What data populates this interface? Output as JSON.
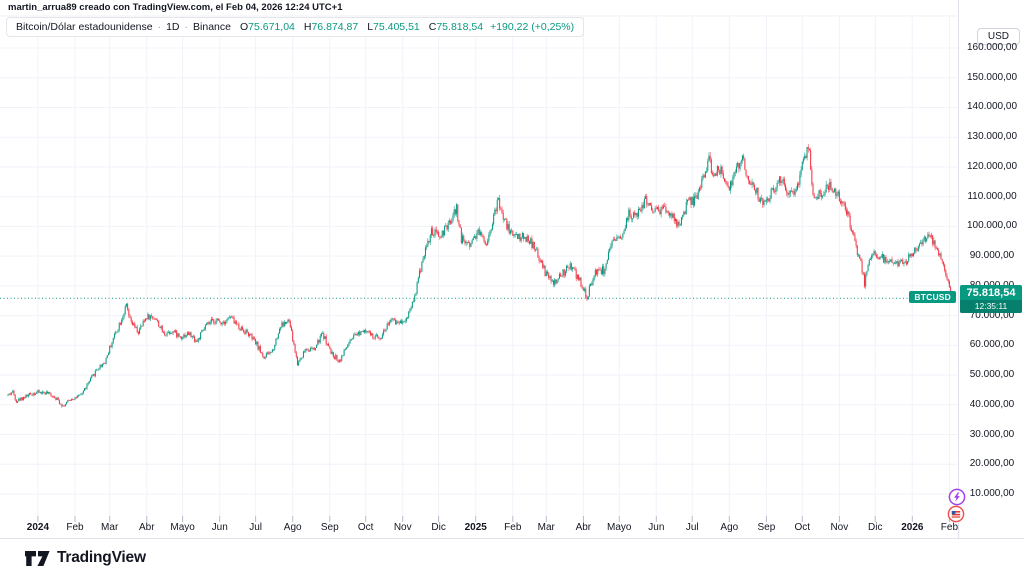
{
  "header": {
    "attribution": "martin_arrua89 creado con TradingView.com, el Feb 04, 2026 12:24 UTC+1"
  },
  "legend": {
    "symbol_title": "Bitcoin/Dólar estadounidense",
    "sep": "·",
    "interval": "1D",
    "exchange": "Binance",
    "o_label": "O",
    "o": "75.671,04",
    "h_label": "H",
    "h": "76.874,87",
    "l_label": "L",
    "l": "75.405,51",
    "c_label": "C",
    "c": "75.818,54",
    "change": "+190,22 (+0,25%)"
  },
  "price_axis": {
    "currency_button": "USD",
    "levels": [
      {
        "text": "160.000,00",
        "value": 160000
      },
      {
        "text": "150.000,00",
        "value": 150000
      },
      {
        "text": "140.000,00",
        "value": 140000
      },
      {
        "text": "130.000,00",
        "value": 130000
      },
      {
        "text": "120.000,00",
        "value": 120000
      },
      {
        "text": "110.000,00",
        "value": 110000
      },
      {
        "text": "100.000,00",
        "value": 100000
      },
      {
        "text": "90.000,00",
        "value": 90000
      },
      {
        "text": "80.000,00",
        "value": 80000
      },
      {
        "text": "70.000,00",
        "value": 70000
      },
      {
        "text": "60.000,00",
        "value": 60000
      },
      {
        "text": "50.000,00",
        "value": 50000
      },
      {
        "text": "40.000,00",
        "value": 40000
      },
      {
        "text": "30.000,00",
        "value": 30000
      },
      {
        "text": "20.000,00",
        "value": 20000
      },
      {
        "text": "10.000,00",
        "value": 10000
      }
    ],
    "price_label": {
      "symbol": "BTCUSD",
      "price": "75.818,54",
      "countdown": "12:35:11"
    }
  },
  "time_axis": {
    "labels": [
      {
        "text": "2024",
        "day": 25,
        "bold": true
      },
      {
        "text": "Feb",
        "day": 56,
        "bold": false
      },
      {
        "text": "Mar",
        "day": 85,
        "bold": false
      },
      {
        "text": "Abr",
        "day": 116,
        "bold": false
      },
      {
        "text": "Mayo",
        "day": 146,
        "bold": false
      },
      {
        "text": "Jun",
        "day": 177,
        "bold": false
      },
      {
        "text": "Jul",
        "day": 207,
        "bold": false
      },
      {
        "text": "Ago",
        "day": 238,
        "bold": false
      },
      {
        "text": "Sep",
        "day": 269,
        "bold": false
      },
      {
        "text": "Oct",
        "day": 299,
        "bold": false
      },
      {
        "text": "Nov",
        "day": 330,
        "bold": false
      },
      {
        "text": "Dic",
        "day": 360,
        "bold": false
      },
      {
        "text": "2025",
        "day": 391,
        "bold": true
      },
      {
        "text": "Feb",
        "day": 422,
        "bold": false
      },
      {
        "text": "Mar",
        "day": 450,
        "bold": false
      },
      {
        "text": "Abr",
        "day": 481,
        "bold": false
      },
      {
        "text": "Mayo",
        "day": 511,
        "bold": false
      },
      {
        "text": "Jun",
        "day": 542,
        "bold": false
      },
      {
        "text": "Jul",
        "day": 572,
        "bold": false
      },
      {
        "text": "Ago",
        "day": 603,
        "bold": false
      },
      {
        "text": "Sep",
        "day": 634,
        "bold": false
      },
      {
        "text": "Oct",
        "day": 664,
        "bold": false
      },
      {
        "text": "Nov",
        "day": 695,
        "bold": false
      },
      {
        "text": "Dic",
        "day": 725,
        "bold": false
      },
      {
        "text": "2026",
        "day": 756,
        "bold": true
      },
      {
        "text": "Feb",
        "day": 787,
        "bold": false
      }
    ]
  },
  "footer": {
    "brand": "TradingView"
  },
  "icons": {
    "lightning": "events-lightning-icon",
    "flag": "us-economic-events-icon"
  },
  "colors": {
    "up": "#089981",
    "down": "#f23645",
    "grid": "#f0f3fa",
    "axis": "#e0e3eb",
    "text": "#131722"
  },
  "chart_data": {
    "type": "candlestick",
    "title": "Bitcoin/Dólar estadounidense · 1D · Binance",
    "symbol": "BTCUSD",
    "currency": "USD",
    "interval": "1D",
    "last_price": 75818.54,
    "ohlc_today": {
      "open": 75671.04,
      "high": 76874.87,
      "low": 75405.51,
      "close": 75818.54,
      "change": 190.22,
      "change_pct": 0.25
    },
    "y_axis": {
      "min": 10000,
      "max": 160000,
      "step": 10000
    },
    "x_range": {
      "start": "2023-12-07",
      "end": "2026-02-04"
    },
    "legend_position": "top-left",
    "grid": true,
    "up_color": "#089981",
    "down_color": "#f23645",
    "anchors_note": "approx close prices (USD) at [day-offset from 2023-12-07]; daily candles interpolated between anchors",
    "anchors": [
      [
        0,
        43300
      ],
      [
        4,
        44400
      ],
      [
        7,
        41300
      ],
      [
        14,
        42700
      ],
      [
        21,
        43900
      ],
      [
        25,
        44200
      ],
      [
        32,
        44000
      ],
      [
        39,
        42800
      ],
      [
        46,
        39600
      ],
      [
        53,
        42100
      ],
      [
        60,
        42800
      ],
      [
        67,
        47100
      ],
      [
        74,
        51800
      ],
      [
        81,
        54500
      ],
      [
        88,
        62400
      ],
      [
        95,
        69000
      ],
      [
        99,
        73200
      ],
      [
        102,
        68200
      ],
      [
        109,
        64300
      ],
      [
        116,
        69800
      ],
      [
        123,
        69300
      ],
      [
        130,
        63900
      ],
      [
        137,
        64900
      ],
      [
        144,
        62900
      ],
      [
        151,
        64000
      ],
      [
        158,
        61300
      ],
      [
        165,
        66300
      ],
      [
        172,
        68400
      ],
      [
        179,
        67800
      ],
      [
        186,
        69500
      ],
      [
        193,
        66200
      ],
      [
        200,
        64300
      ],
      [
        207,
        60900
      ],
      [
        214,
        55900
      ],
      [
        221,
        58200
      ],
      [
        228,
        66700
      ],
      [
        235,
        68100
      ],
      [
        242,
        53800
      ],
      [
        249,
        58900
      ],
      [
        256,
        58500
      ],
      [
        263,
        64100
      ],
      [
        270,
        57400
      ],
      [
        277,
        54800
      ],
      [
        284,
        60100
      ],
      [
        291,
        63400
      ],
      [
        298,
        65700
      ],
      [
        305,
        62600
      ],
      [
        312,
        63100
      ],
      [
        319,
        68300
      ],
      [
        326,
        67800
      ],
      [
        333,
        68900
      ],
      [
        340,
        76600
      ],
      [
        347,
        90000
      ],
      [
        354,
        97900
      ],
      [
        361,
        96700
      ],
      [
        368,
        100000
      ],
      [
        375,
        106100
      ],
      [
        379,
        95800
      ],
      [
        386,
        94200
      ],
      [
        393,
        98600
      ],
      [
        400,
        94500
      ],
      [
        407,
        104500
      ],
      [
        410,
        109000
      ],
      [
        414,
        102500
      ],
      [
        421,
        97600
      ],
      [
        428,
        96500
      ],
      [
        435,
        96000
      ],
      [
        442,
        91200
      ],
      [
        449,
        84500
      ],
      [
        456,
        80500
      ],
      [
        463,
        83800
      ],
      [
        470,
        86800
      ],
      [
        477,
        82400
      ],
      [
        484,
        76300
      ],
      [
        491,
        85100
      ],
      [
        498,
        85300
      ],
      [
        505,
        93900
      ],
      [
        512,
        96400
      ],
      [
        519,
        104000
      ],
      [
        526,
        103500
      ],
      [
        533,
        108900
      ],
      [
        540,
        105500
      ],
      [
        547,
        105700
      ],
      [
        554,
        104200
      ],
      [
        561,
        99500
      ],
      [
        568,
        107900
      ],
      [
        575,
        109100
      ],
      [
        582,
        118000
      ],
      [
        586,
        122400
      ],
      [
        589,
        117500
      ],
      [
        596,
        119200
      ],
      [
        603,
        113300
      ],
      [
        610,
        119500
      ],
      [
        614,
        123400
      ],
      [
        617,
        117300
      ],
      [
        624,
        113100
      ],
      [
        631,
        107000
      ],
      [
        638,
        111300
      ],
      [
        645,
        115900
      ],
      [
        652,
        112400
      ],
      [
        659,
        112300
      ],
      [
        666,
        123800
      ],
      [
        670,
        125800
      ],
      [
        673,
        111000
      ],
      [
        680,
        110800
      ],
      [
        687,
        114600
      ],
      [
        694,
        110300
      ],
      [
        701,
        105000
      ],
      [
        708,
        94600
      ],
      [
        715,
        84000
      ],
      [
        716,
        81000
      ],
      [
        722,
        91400
      ],
      [
        729,
        90100
      ],
      [
        736,
        87700
      ],
      [
        743,
        87100
      ],
      [
        750,
        88100
      ],
      [
        757,
        91600
      ],
      [
        764,
        94800
      ],
      [
        771,
        96700
      ],
      [
        778,
        91600
      ],
      [
        785,
        83500
      ],
      [
        788,
        79000
      ],
      [
        790,
        75818.54
      ]
    ],
    "seed": 42,
    "daily_noise": 0.016,
    "wick_noise": 0.011
  }
}
